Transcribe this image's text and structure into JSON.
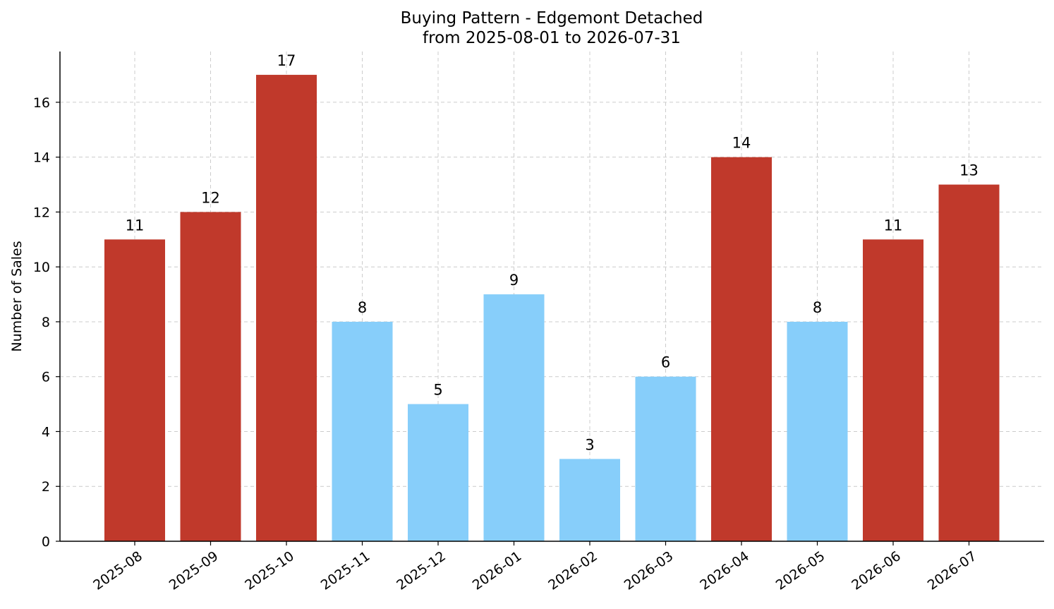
{
  "chart_data": {
    "type": "bar",
    "title": "Buying Pattern - Edgemont Detached",
    "subtitle": "from 2025-08-01 to 2026-07-31",
    "xlabel": "",
    "ylabel": "Number of Sales",
    "categories": [
      "2025-08",
      "2025-09",
      "2025-10",
      "2025-11",
      "2025-12",
      "2026-01",
      "2026-02",
      "2026-03",
      "2026-04",
      "2026-05",
      "2026-06",
      "2026-07"
    ],
    "values": [
      11,
      12,
      17,
      8,
      5,
      9,
      3,
      6,
      14,
      8,
      11,
      13
    ],
    "bar_colors": [
      "#c0392b",
      "#c0392b",
      "#c0392b",
      "#87cefa",
      "#87cefa",
      "#87cefa",
      "#87cefa",
      "#87cefa",
      "#c0392b",
      "#87cefa",
      "#c0392b",
      "#c0392b"
    ],
    "ylim": [
      0,
      17.85
    ],
    "yticks": [
      0,
      2,
      4,
      6,
      8,
      10,
      12,
      14,
      16
    ],
    "grid": true,
    "legend": "none"
  }
}
